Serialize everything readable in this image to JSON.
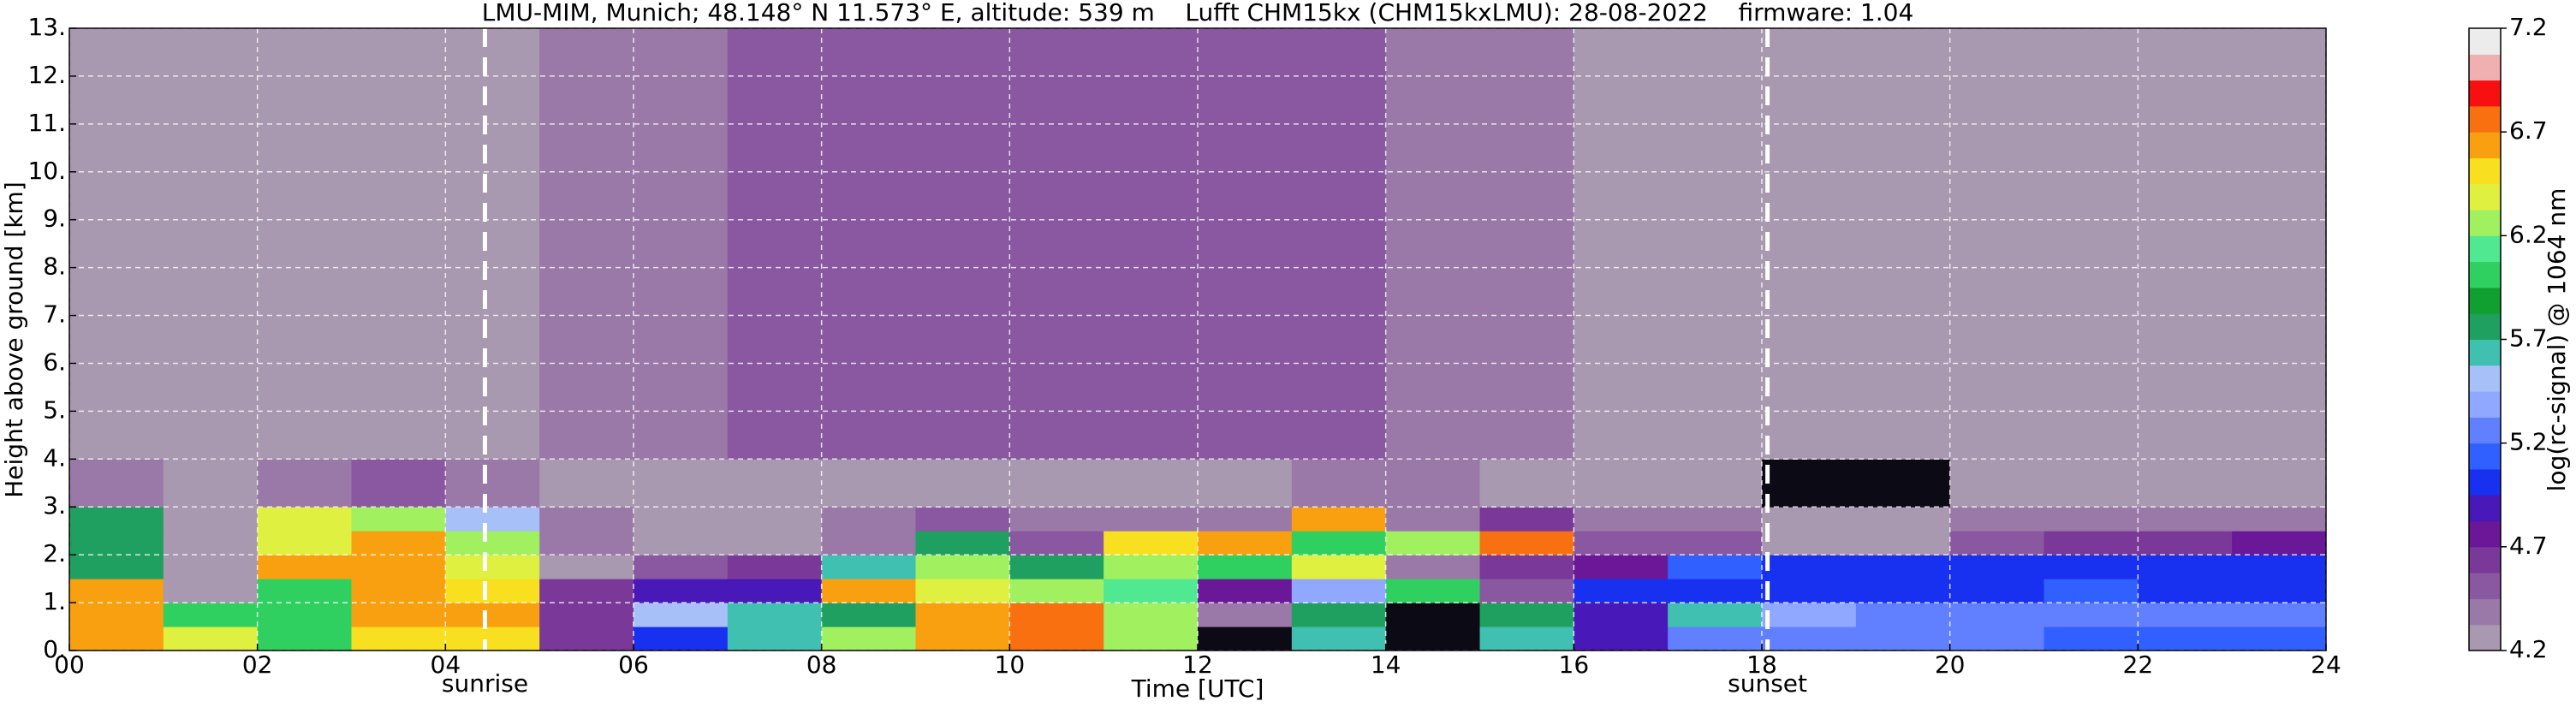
{
  "chart_data": {
    "type": "heatmap",
    "title": "LMU-MIM, Munich; 48.148° N 11.573° E, altitude: 539 m    Lufft CHM15kx (CHM15kxLMU): 28-08-2022    firmware: 1.04",
    "x_label": "Time [UTC]",
    "y_label": "Height above ground [km]",
    "colorbar_label": "log(rc-signal) @ 1064 nm",
    "xlim": [
      0,
      24
    ],
    "ylim": [
      0,
      13
    ],
    "xticks": [
      {
        "value": 0,
        "label": "00"
      },
      {
        "value": 2,
        "label": "02"
      },
      {
        "value": 4,
        "label": "04"
      },
      {
        "value": 6,
        "label": "06"
      },
      {
        "value": 8,
        "label": "08"
      },
      {
        "value": 10,
        "label": "10"
      },
      {
        "value": 12,
        "label": "12"
      },
      {
        "value": 14,
        "label": "14"
      },
      {
        "value": 16,
        "label": "16"
      },
      {
        "value": 18,
        "label": "18"
      },
      {
        "value": 20,
        "label": "20"
      },
      {
        "value": 22,
        "label": "22"
      },
      {
        "value": 24,
        "label": "24"
      }
    ],
    "yticks": [
      {
        "value": 0,
        "label": "0."
      },
      {
        "value": 1,
        "label": "1."
      },
      {
        "value": 2,
        "label": "2."
      },
      {
        "value": 3,
        "label": "3."
      },
      {
        "value": 4,
        "label": "4."
      },
      {
        "value": 5,
        "label": "5."
      },
      {
        "value": 6,
        "label": "6."
      },
      {
        "value": 7,
        "label": "7."
      },
      {
        "value": 8,
        "label": "8."
      },
      {
        "value": 9,
        "label": "9."
      },
      {
        "value": 10,
        "label": "10."
      },
      {
        "value": 11,
        "label": "11."
      },
      {
        "value": 12,
        "label": "12."
      },
      {
        "value": 13,
        "label": "13."
      }
    ],
    "grid": true,
    "clim": [
      4.2,
      7.2
    ],
    "cticks": [
      4.2,
      4.7,
      5.2,
      5.7,
      6.2,
      6.7,
      7.2
    ],
    "colormap": [
      "#a898b0",
      "#9a78a8",
      "#8a58a0",
      "#7a3898",
      "#6a1898",
      "#4818b8",
      "#1830f0",
      "#3060ff",
      "#6080ff",
      "#90a8ff",
      "#a8c0f8",
      "#40c0b0",
      "#20a060",
      "#10a030",
      "#30d060",
      "#50e890",
      "#a0f060",
      "#e0f040",
      "#f8e020",
      "#f8a010",
      "#f87010",
      "#f81010",
      "#f0b0b0",
      "#ececec"
    ],
    "under_color": "#0c0a14",
    "x_edges": [
      0,
      1,
      2,
      3,
      4,
      5,
      6,
      7,
      8,
      9,
      10,
      11,
      12,
      13,
      14,
      15,
      16,
      17,
      18,
      19,
      20,
      21,
      22,
      23,
      24
    ],
    "y_edges": [
      0,
      0.5,
      1,
      1.5,
      2,
      2.5,
      3,
      4,
      13
    ],
    "z": [
      [
        6.6,
        6.4,
        6.0,
        6.5,
        6.5,
        4.6,
        5.0,
        5.6,
        6.3,
        6.6,
        6.8,
        6.2,
        4.0,
        5.6,
        4.0,
        5.6,
        4.9,
        5.2,
        5.3,
        5.2,
        5.3,
        5.1,
        5.1,
        5.1
      ],
      [
        6.6,
        6.0,
        6.0,
        6.6,
        6.6,
        4.6,
        5.5,
        5.6,
        5.7,
        6.6,
        6.7,
        6.2,
        4.4,
        5.7,
        4.0,
        5.7,
        4.9,
        5.6,
        5.4,
        5.2,
        5.2,
        5.2,
        5.2,
        5.2
      ],
      [
        6.6,
        4.2,
        6.0,
        6.6,
        6.5,
        4.6,
        4.9,
        4.9,
        6.6,
        6.4,
        6.2,
        6.1,
        4.7,
        5.4,
        6.0,
        4.5,
        5.0,
        5.0,
        5.0,
        5.0,
        5.0,
        5.1,
        5.0,
        5.0
      ],
      [
        5.8,
        4.2,
        6.6,
        6.6,
        6.4,
        4.3,
        4.5,
        4.6,
        5.6,
        6.3,
        5.8,
        6.3,
        6.0,
        6.4,
        4.4,
        4.6,
        4.8,
        5.1,
        5.0,
        5.0,
        5.0,
        5.0,
        5.0,
        5.0
      ],
      [
        5.8,
        4.2,
        6.4,
        6.6,
        6.2,
        4.4,
        4.3,
        4.3,
        4.4,
        5.8,
        4.5,
        6.5,
        6.6,
        6.0,
        6.2,
        6.8,
        4.5,
        4.5,
        4.3,
        4.3,
        4.5,
        4.6,
        4.6,
        4.8
      ],
      [
        5.8,
        4.2,
        6.4,
        6.3,
        5.5,
        4.4,
        4.3,
        4.3,
        4.4,
        4.5,
        4.4,
        4.4,
        4.4,
        6.6,
        4.4,
        4.6,
        4.4,
        4.4,
        4.3,
        4.3,
        4.4,
        4.4,
        4.4,
        4.4
      ],
      [
        4.4,
        4.2,
        4.4,
        4.5,
        4.4,
        4.3,
        4.3,
        4.3,
        4.3,
        4.3,
        4.3,
        4.3,
        4.3,
        4.4,
        4.4,
        4.3,
        4.3,
        4.3,
        4.1,
        4.1,
        4.3,
        4.3,
        4.3,
        4.3
      ],
      [
        4.3,
        4.3,
        4.3,
        4.3,
        4.3,
        4.4,
        4.4,
        4.5,
        4.5,
        4.5,
        4.5,
        4.5,
        4.5,
        4.5,
        4.4,
        4.4,
        4.3,
        4.3,
        4.3,
        4.3,
        4.3,
        4.3,
        4.3,
        4.3
      ]
    ],
    "annotations": [
      {
        "x": 4.42,
        "label": "sunrise"
      },
      {
        "x": 18.06,
        "label": "sunset"
      }
    ]
  }
}
